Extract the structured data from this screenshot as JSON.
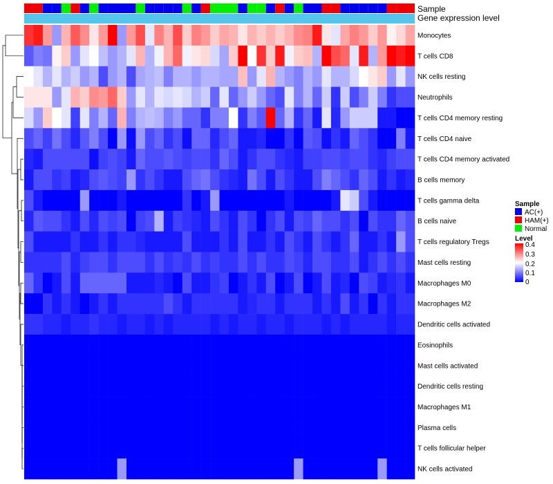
{
  "colors": {
    "sample": {
      "AC(+)": "#0000ee",
      "HAM(+)": "#ee0000",
      "Normal": "#00ee00"
    },
    "gene_band": "#56c5ec",
    "low": "#0000ff",
    "mid": "#ffffff",
    "high": "#ff0000",
    "border": "#ffffff"
  },
  "chart_data": {
    "type": "heatmap",
    "annotations": {
      "sample_label": "Sample",
      "gene_label": "Gene expression level"
    },
    "rows": [
      "Monocytes",
      "T cells CD8",
      "NK cells resting",
      "Neutrophils",
      "T cells CD4 memory resting",
      "T cells CD4 naive",
      "T cells CD4 memory activated",
      "B cells memory",
      "T cells gamma delta",
      "B cells naive",
      "T cells regulatory  Tregs",
      "Mast cells resting",
      "Macrophages M0",
      "Macrophages M2",
      "Dendritic cells activated",
      "Eosinophils",
      "Mast cells activated",
      "Dendritic cells resting",
      "Macrophages M1",
      "Plasma cells",
      "T cells follicular helper",
      "NK cells activated"
    ],
    "sample_groups": [
      "HAM(+)",
      "HAM(+)",
      "AC(+)",
      "AC(+)",
      "Normal",
      "HAM(+)",
      "AC(+)",
      "Normal",
      "AC(+)",
      "AC(+)",
      "AC(+)",
      "AC(+)",
      "Normal",
      "AC(+)",
      "AC(+)",
      "AC(+)",
      "AC(+)",
      "Normal",
      "AC(+)",
      "HAM(+)",
      "Normal",
      "Normal",
      "Normal",
      "AC(+)",
      "Normal",
      "Normal",
      "AC(+)",
      "HAM(+)",
      "AC(+)",
      "Normal",
      "AC(+)",
      "AC(+)",
      "HAM(+)",
      "HAM(+)",
      "AC(+)",
      "AC(+)",
      "AC(+)",
      "AC(+)",
      "AC(+)",
      "HAM(+)",
      "HAM(+)",
      "HAM(+)"
    ],
    "values": [
      [
        0.36,
        0.38,
        0.28,
        0.12,
        0.26,
        0.33,
        0.29,
        0.22,
        0.28,
        0.4,
        0.12,
        0.28,
        0.34,
        0.18,
        0.3,
        0.26,
        0.34,
        0.24,
        0.3,
        0.28,
        0.24,
        0.27,
        0.26,
        0.22,
        0.26,
        0.24,
        0.26,
        0.24,
        0.26,
        0.29,
        0.3,
        0.38,
        0.22,
        0.18,
        0.27,
        0.3,
        0.28,
        0.24,
        0.28,
        0.21,
        0.23,
        0.27
      ],
      [
        0.07,
        0.1,
        0.09,
        0.21,
        0.24,
        0.12,
        0.18,
        0.2,
        0.15,
        0.12,
        0.14,
        0.18,
        0.26,
        0.14,
        0.19,
        0.26,
        0.32,
        0.19,
        0.22,
        0.23,
        0.17,
        0.13,
        0.24,
        0.4,
        0.2,
        0.36,
        0.24,
        0.38,
        0.19,
        0.24,
        0.25,
        0.14,
        0.4,
        0.34,
        0.32,
        0.18,
        0.38,
        0.14,
        0.28,
        0.4,
        0.38,
        0.4
      ],
      [
        0.2,
        0.18,
        0.14,
        0.18,
        0.14,
        0.16,
        0.12,
        0.14,
        0.06,
        0.12,
        0.14,
        0.06,
        0.13,
        0.14,
        0.15,
        0.1,
        0.14,
        0.14,
        0.12,
        0.14,
        0.14,
        0.13,
        0.13,
        0.25,
        0.12,
        0.18,
        0.26,
        0.14,
        0.12,
        0.1,
        0.14,
        0.12,
        0.18,
        0.14,
        0.14,
        0.17,
        0.2,
        0.22,
        0.24,
        0.12,
        0.18,
        0.12
      ],
      [
        0.22,
        0.22,
        0.22,
        0.12,
        0.18,
        0.26,
        0.24,
        0.29,
        0.28,
        0.32,
        0.24,
        0.12,
        0.18,
        0.14,
        0.18,
        0.17,
        0.18,
        0.17,
        0.14,
        0.16,
        0.08,
        0.18,
        0.08,
        0.12,
        0.16,
        0.12,
        0.08,
        0.06,
        0.18,
        0.1,
        0.14,
        0.08,
        0.16,
        0.04,
        0.16,
        0.06,
        0.1,
        0.16,
        0.1,
        0.04,
        0.06,
        0.06
      ],
      [
        0.17,
        0.12,
        0.24,
        0.2,
        0.18,
        0.05,
        0.18,
        0.1,
        0.14,
        0.08,
        0.26,
        0.1,
        0.14,
        0.15,
        0.14,
        0.1,
        0.12,
        0.08,
        0.08,
        0.04,
        0.1,
        0.1,
        0.2,
        0.04,
        0.1,
        0.07,
        0.4,
        0.08,
        0.14,
        0.04,
        0.08,
        0.02,
        0.18,
        0.03,
        0.12,
        0.16,
        0.16,
        0.16,
        0.02,
        0.02,
        0.0,
        0.0
      ],
      [
        0.06,
        0.08,
        0.05,
        0.09,
        0.06,
        0.03,
        0.07,
        0.1,
        0.06,
        0.0,
        0.12,
        0.01,
        0.12,
        0.06,
        0.08,
        0.04,
        0.06,
        0.01,
        0.08,
        0.08,
        0.03,
        0.06,
        0.08,
        0.02,
        0.02,
        0.03,
        0.0,
        0.0,
        0.04,
        0.0,
        0.07,
        0.06,
        0.01,
        0.04,
        0.02,
        0.08,
        0.06,
        0.04,
        0.0,
        0.0,
        0.1,
        0.02
      ],
      [
        0.03,
        0.02,
        0.06,
        0.06,
        0.06,
        0.06,
        0.06,
        0.01,
        0.05,
        0.06,
        0.05,
        0.02,
        0.08,
        0.06,
        0.06,
        0.07,
        0.06,
        0.05,
        0.06,
        0.06,
        0.04,
        0.08,
        0.06,
        0.02,
        0.04,
        0.06,
        0.06,
        0.04,
        0.03,
        0.02,
        0.05,
        0.05,
        0.06,
        0.06,
        0.05,
        0.06,
        0.06,
        0.04,
        0.03,
        0.05,
        0.06,
        0.06
      ],
      [
        0.02,
        0.06,
        0.06,
        0.04,
        0.05,
        0.02,
        0.03,
        0.06,
        0.07,
        0.06,
        0.05,
        0.12,
        0.04,
        0.06,
        0.04,
        0.02,
        0.02,
        0.06,
        0.08,
        0.09,
        0.06,
        0.04,
        0.03,
        0.02,
        0.09,
        0.06,
        0.02,
        0.06,
        0.04,
        0.02,
        0.02,
        0.06,
        0.1,
        0.08,
        0.06,
        0.04,
        0.08,
        0.06,
        0.02,
        0.04,
        0.02,
        0.03
      ],
      [
        0.06,
        0.02,
        0.0,
        0.0,
        0.0,
        0.0,
        0.12,
        0.0,
        0.0,
        0.0,
        0.02,
        0.0,
        0.0,
        0.0,
        0.0,
        0.0,
        0.0,
        0.04,
        0.0,
        0.02,
        0.12,
        0.0,
        0.0,
        0.0,
        0.0,
        0.0,
        0.0,
        0.0,
        0.02,
        0.0,
        0.0,
        0.0,
        0.0,
        0.02,
        0.18,
        0.16,
        0.06,
        0.02,
        0.0,
        0.0,
        0.0,
        0.0
      ],
      [
        0.03,
        0.07,
        0.06,
        0.06,
        0.04,
        0.02,
        0.06,
        0.03,
        0.06,
        0.05,
        0.06,
        0.0,
        0.05,
        0.06,
        0.14,
        0.02,
        0.05,
        0.04,
        0.03,
        0.02,
        0.06,
        0.04,
        0.02,
        0.06,
        0.04,
        0.0,
        0.04,
        0.06,
        0.02,
        0.06,
        0.05,
        0.08,
        0.06,
        0.06,
        0.04,
        0.06,
        0.0,
        0.06,
        0.04,
        0.04,
        0.08,
        0.06
      ],
      [
        0.06,
        0.02,
        0.02,
        0.02,
        0.02,
        0.04,
        0.02,
        0.02,
        0.04,
        0.02,
        0.04,
        0.04,
        0.03,
        0.02,
        0.02,
        0.02,
        0.02,
        0.06,
        0.02,
        0.02,
        0.02,
        0.04,
        0.02,
        0.06,
        0.02,
        0.02,
        0.04,
        0.02,
        0.06,
        0.04,
        0.02,
        0.06,
        0.04,
        0.02,
        0.04,
        0.08,
        0.02,
        0.02,
        0.04,
        0.02,
        0.12,
        0.06
      ],
      [
        0.04,
        0.04,
        0.04,
        0.04,
        0.06,
        0.03,
        0.05,
        0.06,
        0.06,
        0.04,
        0.06,
        0.06,
        0.06,
        0.04,
        0.06,
        0.04,
        0.05,
        0.04,
        0.06,
        0.04,
        0.05,
        0.04,
        0.04,
        0.06,
        0.04,
        0.06,
        0.04,
        0.04,
        0.06,
        0.05,
        0.03,
        0.06,
        0.06,
        0.04,
        0.04,
        0.06,
        0.02,
        0.04,
        0.06,
        0.04,
        0.06,
        0.04
      ],
      [
        0.08,
        0.04,
        0.0,
        0.02,
        0.06,
        0.02,
        0.08,
        0.08,
        0.08,
        0.08,
        0.08,
        0.02,
        0.02,
        0.02,
        0.03,
        0.02,
        0.0,
        0.06,
        0.02,
        0.02,
        0.04,
        0.05,
        0.0,
        0.02,
        0.04,
        0.02,
        0.06,
        0.0,
        0.02,
        0.06,
        0.0,
        0.02,
        0.06,
        0.02,
        0.03,
        0.0,
        0.06,
        0.05,
        0.02,
        0.03,
        0.04,
        0.02
      ],
      [
        0.0,
        0.0,
        0.04,
        0.02,
        0.04,
        0.02,
        0.0,
        0.02,
        0.04,
        0.02,
        0.04,
        0.04,
        0.04,
        0.04,
        0.04,
        0.06,
        0.04,
        0.02,
        0.04,
        0.04,
        0.04,
        0.04,
        0.04,
        0.02,
        0.03,
        0.04,
        0.04,
        0.02,
        0.04,
        0.04,
        0.04,
        0.02,
        0.04,
        0.02,
        0.06,
        0.02,
        0.04,
        0.0,
        0.04,
        0.02,
        0.04,
        0.04
      ],
      [
        0.04,
        0.04,
        0.03,
        0.03,
        0.02,
        0.03,
        0.03,
        0.04,
        0.03,
        0.03,
        0.02,
        0.03,
        0.03,
        0.02,
        0.03,
        0.02,
        0.03,
        0.03,
        0.03,
        0.03,
        0.02,
        0.03,
        0.02,
        0.03,
        0.03,
        0.02,
        0.03,
        0.03,
        0.02,
        0.03,
        0.03,
        0.03,
        0.02,
        0.03,
        0.02,
        0.03,
        0.03,
        0.03,
        0.03,
        0.02,
        0.03,
        0.03
      ],
      [
        0,
        0,
        0,
        0,
        0,
        0,
        0,
        0,
        0,
        0,
        0,
        0,
        0,
        0,
        0,
        0,
        0,
        0,
        0,
        0,
        0,
        0,
        0,
        0,
        0,
        0,
        0,
        0,
        0,
        0,
        0,
        0,
        0,
        0,
        0,
        0,
        0,
        0,
        0,
        0,
        0,
        0
      ],
      [
        0,
        0,
        0,
        0,
        0,
        0,
        0,
        0,
        0,
        0,
        0,
        0,
        0,
        0,
        0,
        0,
        0,
        0,
        0,
        0,
        0,
        0,
        0,
        0,
        0,
        0,
        0,
        0,
        0,
        0,
        0,
        0,
        0,
        0,
        0,
        0,
        0,
        0,
        0,
        0,
        0,
        0
      ],
      [
        0,
        0,
        0,
        0,
        0,
        0,
        0,
        0,
        0,
        0,
        0,
        0,
        0,
        0,
        0,
        0,
        0,
        0,
        0,
        0,
        0,
        0,
        0,
        0,
        0,
        0,
        0,
        0,
        0,
        0,
        0,
        0,
        0,
        0,
        0,
        0,
        0,
        0,
        0,
        0,
        0,
        0
      ],
      [
        0,
        0,
        0,
        0,
        0,
        0,
        0,
        0,
        0,
        0,
        0,
        0,
        0,
        0,
        0,
        0,
        0,
        0,
        0,
        0,
        0,
        0,
        0,
        0,
        0,
        0,
        0,
        0,
        0,
        0,
        0,
        0,
        0,
        0,
        0,
        0,
        0,
        0,
        0,
        0,
        0,
        0
      ],
      [
        0,
        0,
        0,
        0,
        0,
        0,
        0,
        0,
        0,
        0,
        0,
        0,
        0,
        0,
        0,
        0,
        0,
        0,
        0,
        0,
        0,
        0,
        0,
        0,
        0,
        0,
        0,
        0,
        0,
        0,
        0,
        0,
        0,
        0,
        0,
        0,
        0,
        0,
        0,
        0,
        0,
        0
      ],
      [
        0,
        0,
        0,
        0,
        0,
        0,
        0,
        0,
        0,
        0,
        0,
        0,
        0,
        0,
        0,
        0,
        0,
        0,
        0,
        0,
        0,
        0,
        0,
        0,
        0,
        0,
        0,
        0,
        0,
        0,
        0,
        0,
        0,
        0,
        0,
        0,
        0,
        0,
        0,
        0,
        0,
        0
      ],
      [
        0,
        0,
        0,
        0,
        0,
        0,
        0,
        0,
        0,
        0,
        0.12,
        0,
        0,
        0,
        0,
        0,
        0,
        0,
        0,
        0,
        0,
        0,
        0,
        0,
        0,
        0,
        0,
        0,
        0,
        0.12,
        0,
        0,
        0,
        0,
        0,
        0,
        0,
        0,
        0.12,
        0,
        0,
        0
      ]
    ],
    "legend": {
      "sample_title": "Sample",
      "sample_entries": [
        "AC(+)",
        "HAM(+)",
        "Normal"
      ],
      "level_title": "Level",
      "level_ticks": [
        "0.4",
        "0.3",
        "0.2",
        "0.1",
        "0"
      ],
      "range": [
        0,
        0.4
      ]
    }
  }
}
